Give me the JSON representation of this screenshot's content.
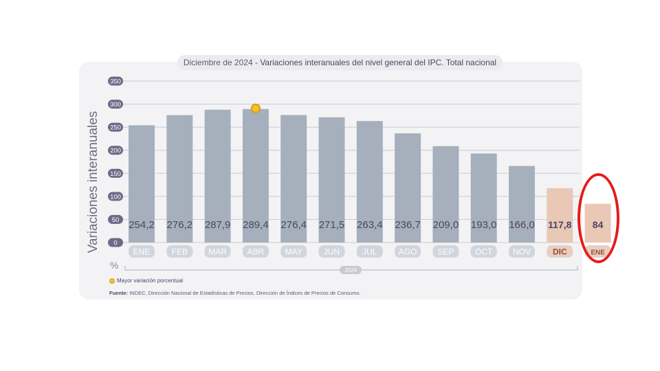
{
  "title": {
    "prefix": "Diciembre de 2024 -",
    "main": "Variaciones interanuales del nivel general del IPC. Total nacional"
  },
  "axis": {
    "ylabel": "Variaciones interanuales",
    "unit": "%",
    "year_label": "2024"
  },
  "legend": {
    "label": "Mayor variación porcentual"
  },
  "source": {
    "label": "Fuente:",
    "text": "INDEC, Dirección Nacional de Estadísticas de Precios. Dirección de Índices de Precios de Consumo."
  },
  "colors": {
    "bar_default": "#a6b0bc",
    "bar_highlight": "#e9c8b5",
    "label_pill_default": "#d3d5dd",
    "label_pill_highlight": "#e6cfc3",
    "marker": "#f2c22e",
    "annotation_ring": "#e41c1c"
  },
  "chart_data": {
    "type": "bar",
    "categories": [
      "ENE",
      "FEB",
      "MAR",
      "ABR",
      "MAY",
      "JUN",
      "JUL",
      "AGO",
      "SEP",
      "OCT",
      "NOV",
      "DIC",
      "ENE"
    ],
    "values": [
      254.2,
      276.2,
      287.9,
      289.4,
      276.4,
      271.5,
      263.4,
      236.7,
      209.0,
      193.0,
      166.0,
      117.8,
      84
    ],
    "value_labels": [
      "254,2",
      "276,2",
      "287,9",
      "289,4",
      "276,4",
      "271,5",
      "263,4",
      "236,7",
      "209,0",
      "193,0",
      "166,0",
      "117,8",
      "84"
    ],
    "highlighted": [
      false,
      false,
      false,
      false,
      false,
      false,
      false,
      false,
      false,
      false,
      false,
      true,
      true
    ],
    "max_marker_index": 3,
    "yticks": [
      0,
      50,
      100,
      150,
      200,
      250,
      300,
      350
    ],
    "ylim": [
      0,
      350
    ],
    "grid": true
  }
}
